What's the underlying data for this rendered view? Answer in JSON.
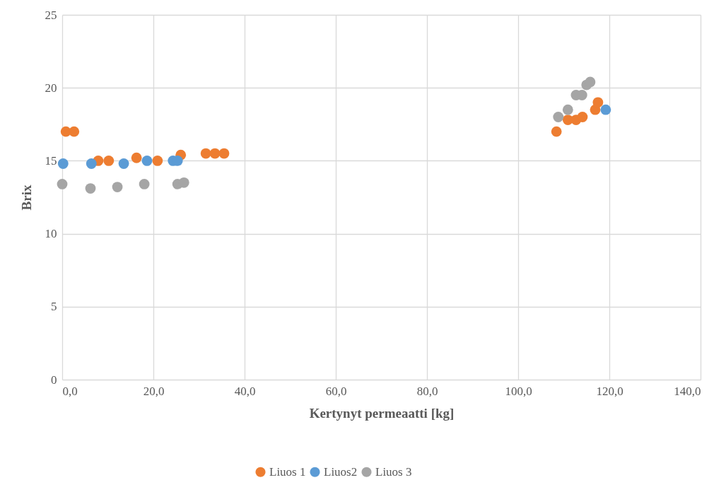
{
  "chart_data": {
    "type": "scatter",
    "xlabel": "Kertynyt permeaatti [kg]",
    "ylabel": "Brix",
    "xlim": [
      0,
      140
    ],
    "xticks": [
      {
        "value": 0,
        "label": "0,0"
      },
      {
        "value": 20,
        "label": "20,0"
      },
      {
        "value": 40,
        "label": "40,0"
      },
      {
        "value": 60,
        "label": "60,0"
      },
      {
        "value": 80,
        "label": "80,0"
      },
      {
        "value": 100,
        "label": "100,0"
      },
      {
        "value": 120,
        "label": "120,0"
      },
      {
        "value": 140,
        "label": "140,0"
      }
    ],
    "ylim": [
      0,
      25
    ],
    "yticks": [
      0,
      5,
      10,
      15,
      20,
      25
    ],
    "grid": true,
    "legend": "bottom",
    "marker": "circle",
    "series": [
      {
        "name": "Liuos 1",
        "color": "#ed7d31",
        "x": [
          0.8,
          2.6,
          7.9,
          10.2,
          16.3,
          20.9,
          26.0,
          31.5,
          33.5,
          35.5,
          108.4,
          110.9,
          112.7,
          114.1,
          116.9,
          117.5
        ],
        "values": [
          17.0,
          17.0,
          15.0,
          15.0,
          15.2,
          15.0,
          15.4,
          15.5,
          15.5,
          15.5,
          17.0,
          17.8,
          17.8,
          18.0,
          18.5,
          19.0
        ]
      },
      {
        "name": "Liuos2",
        "color": "#5b9bd5",
        "x": [
          0.2,
          6.4,
          13.5,
          18.6,
          24.3,
          25.3,
          119.2
        ],
        "values": [
          14.8,
          14.8,
          14.8,
          15.0,
          15.0,
          15.0,
          18.5
        ]
      },
      {
        "name": "Liuos 3",
        "color": "#a5a5a5",
        "x": [
          0.0,
          6.2,
          12.1,
          18.0,
          25.3,
          26.7,
          108.8,
          110.9,
          112.7,
          114.0,
          115.0,
          115.8
        ],
        "values": [
          13.4,
          13.1,
          13.2,
          13.4,
          13.4,
          13.5,
          18.0,
          18.5,
          19.5,
          19.5,
          20.2,
          20.4
        ]
      }
    ]
  }
}
